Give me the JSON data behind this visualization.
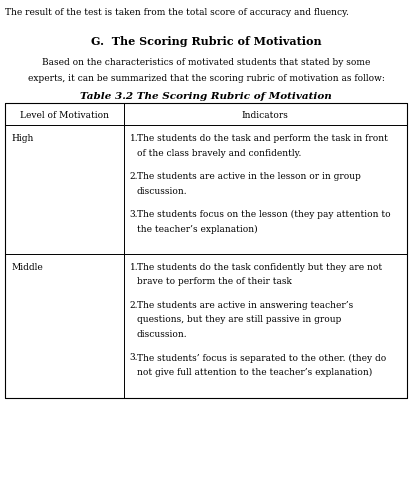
{
  "top_text": "The result of the test is taken from the total score of accuracy and fluency.",
  "section_title": "G.  The Scoring Rubric of Motivation",
  "intro_line1": "Based on the characteristics of motivated students that stated by some",
  "intro_line2": "experts, it can be summarized that the scoring rubric of motivation as follow:",
  "table_title": "Table 3.2 The Scoring Rubric of Motivation",
  "col1_header": "Level of Motivation",
  "col2_header": "Indicators",
  "rows": [
    {
      "level": "High",
      "indicators": [
        [
          "1.",
          "The students do the task and perform the task in front",
          "of the class bravely and confidently."
        ],
        [
          "2.",
          "The students are active in the lesson or in group",
          "discussion."
        ],
        [
          "3.",
          "The students focus on the lesson (they pay attention to",
          "the teacher’s explanation)"
        ]
      ]
    },
    {
      "level": "Middle",
      "indicators": [
        [
          "1.",
          "The students do the task confidently but they are not",
          "brave to perform the of their task"
        ],
        [
          "2.",
          "The students are active in answering teacher’s",
          "questions, but they are still passive in group",
          "discussion."
        ],
        [
          "3.",
          "The students’ focus is separated to the other. (they do",
          "not give full attention to the teacher’s explanation)"
        ]
      ]
    }
  ],
  "bg_color": "#ffffff",
  "text_color": "#000000",
  "border_color": "#000000",
  "fig_width": 4.12,
  "fig_height": 5.02,
  "dpi": 100
}
